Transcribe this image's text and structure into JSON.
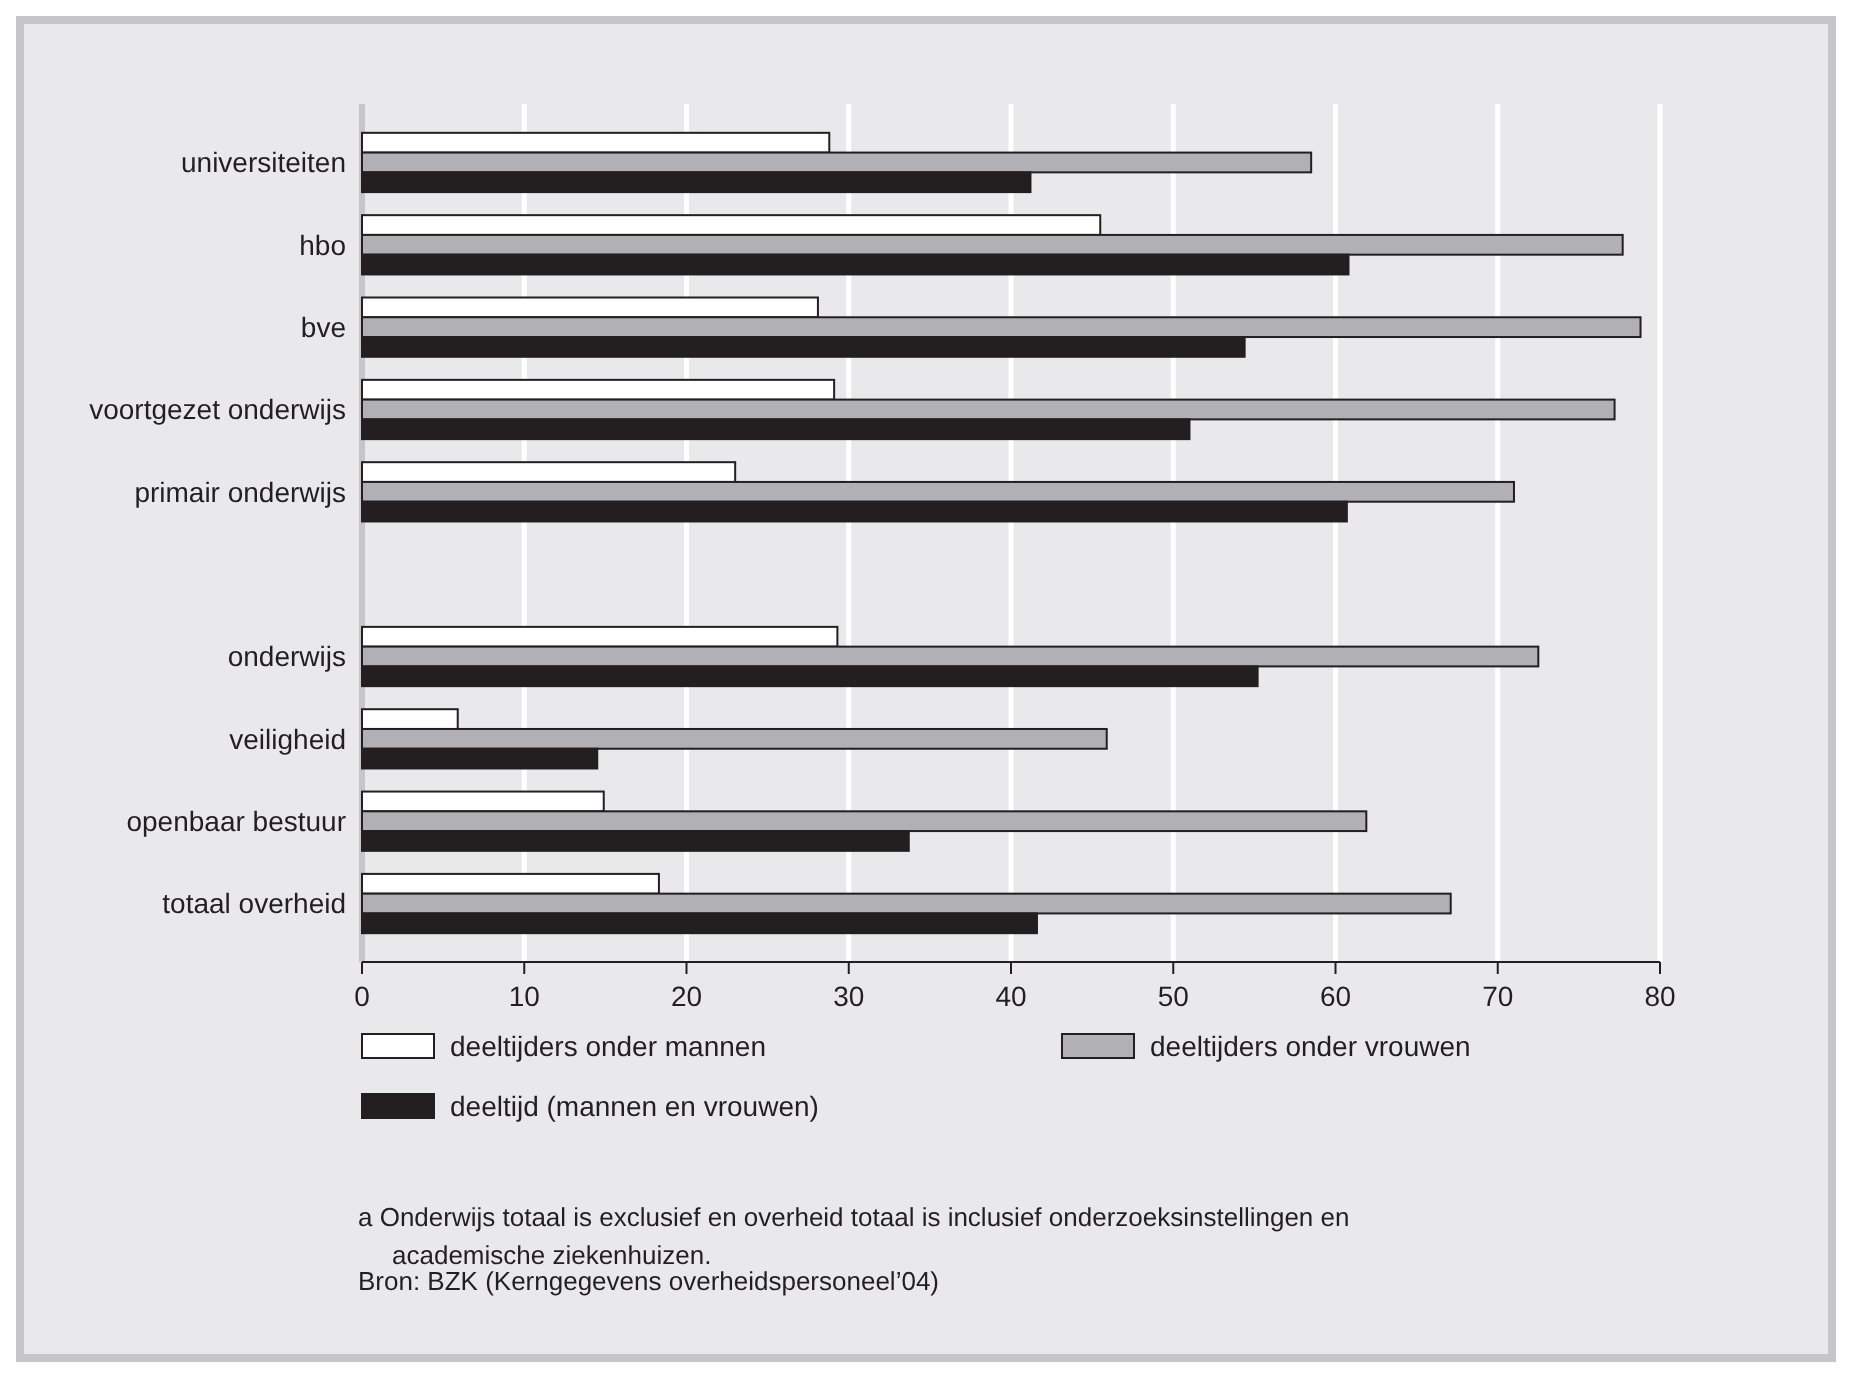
{
  "chart_data": {
    "type": "bar",
    "orientation": "horizontal",
    "categories": [
      "universiteiten",
      "hbo",
      "bve",
      "voortgezet onderwijs",
      "primair onderwijs",
      null,
      "onderwijs",
      "veiligheid",
      "openbaar bestuur",
      "totaal overheid"
    ],
    "series": [
      {
        "name": "deeltijders onder mannen",
        "color": "#ffffff",
        "values": [
          28.8,
          45.5,
          28.1,
          29.1,
          23.0,
          null,
          29.3,
          5.9,
          14.9,
          18.3
        ]
      },
      {
        "name": "deeltijders onder vrouwen",
        "color": "#b1b1b5",
        "values": [
          58.5,
          77.7,
          78.8,
          77.2,
          71.0,
          null,
          72.5,
          45.9,
          61.9,
          67.1
        ]
      },
      {
        "name": "deeltijd (mannen en vrouwen)",
        "color": "#231f20",
        "values": [
          41.2,
          60.8,
          54.4,
          51.0,
          60.7,
          null,
          55.2,
          14.5,
          33.7,
          41.6
        ]
      }
    ],
    "xlim": [
      0,
      80
    ],
    "xticks": [
      0,
      10,
      20,
      30,
      40,
      50,
      60,
      70,
      80
    ],
    "grid": "x",
    "legend": "bottom",
    "annotations": [
      "a   Onderwijs totaal is exclusief en overheid totaal is inclusief onderzoeksinstellingen en academische ziekenhuizen.",
      "Bron: BZK (Kerngegevens overheidspersoneel’04)"
    ]
  }
}
